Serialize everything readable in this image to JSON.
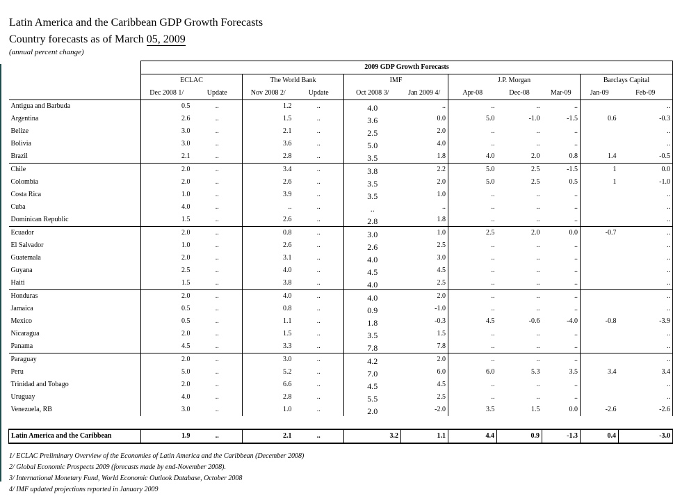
{
  "title": "Latin America and the Caribbean GDP Growth Forecasts",
  "subtitle_prefix": "Country forecasts as of March ",
  "subtitle_date": "05, 2009",
  "units": "(annual percent change)",
  "table": {
    "main_header": "2009 GDP Growth Forecasts",
    "groups": [
      "ECLAC",
      "The World Bank",
      "IMF",
      "J.P. Morgan",
      "Barclays Capital"
    ],
    "columns": [
      "Dec 2008 1/",
      "Update",
      "Nov 2008 2/",
      "Update",
      "Oct 2008 3/",
      "Jan 2009 4/",
      "Apr-08",
      "Dec-08",
      "Mar-09",
      "Jan-09",
      "Feb-09"
    ],
    "rows": [
      [
        "Antigua and Barbuda",
        "0.5",
        "..",
        "1.2",
        "..",
        "4.0",
        "..",
        "..",
        "..",
        "..",
        "",
        ".."
      ],
      [
        "Argentina",
        "2.6",
        "..",
        "1.5",
        "..",
        "3.6",
        "0.0",
        "5.0",
        "-1.0",
        "-1.5",
        "0.6",
        "-0.3"
      ],
      [
        "Belize",
        "3.0",
        "..",
        "2.1",
        "..",
        "2.5",
        "2.0",
        "..",
        "..",
        "..",
        "",
        ".."
      ],
      [
        "Bolivia",
        "3.0",
        "..",
        "3.6",
        "..",
        "5.0",
        "4.0",
        "..",
        "..",
        "..",
        "",
        ".."
      ],
      [
        "Brazil",
        "2.1",
        "..",
        "2.8",
        "..",
        "3.5",
        "1.8",
        "4.0",
        "2.0",
        "0.8",
        "1.4",
        "-0.5"
      ],
      [
        "Chile",
        "2.0",
        "..",
        "3.4",
        "..",
        "3.8",
        "2.2",
        "5.0",
        "2.5",
        "-1.5",
        "1",
        "0.0"
      ],
      [
        "Colombia",
        "2.0",
        "..",
        "2.6",
        "..",
        "3.5",
        "2.0",
        "5.0",
        "2.5",
        "0.5",
        "1",
        "-1.0"
      ],
      [
        "Costa Rica",
        "1.0",
        "..",
        "3.9",
        "..",
        "3.5",
        "1.0",
        "..",
        "..",
        "..",
        "",
        ".."
      ],
      [
        "Cuba",
        "4.0",
        "..",
        "..",
        "..",
        "..",
        "..",
        "..",
        "..",
        "..",
        "",
        ".."
      ],
      [
        "Dominican Republic",
        "1.5",
        "..",
        "2.6",
        "..",
        "2.8",
        "1.8",
        "..",
        "..",
        "..",
        "",
        ".."
      ],
      [
        "Ecuador",
        "2.0",
        "..",
        "0.8",
        "..",
        "3.0",
        "1.0",
        "2.5",
        "2.0",
        "0.0",
        "-0.7",
        ".."
      ],
      [
        "El Salvador",
        "1.0",
        "..",
        "2.6",
        "..",
        "2.6",
        "2.5",
        "..",
        "..",
        "..",
        "",
        ".."
      ],
      [
        "Guatemala",
        "2.0",
        "..",
        "3.1",
        "..",
        "4.0",
        "3.0",
        "..",
        "..",
        "..",
        "",
        ".."
      ],
      [
        "Guyana",
        "2.5",
        "..",
        "4.0",
        "..",
        "4.5",
        "4.5",
        "..",
        "..",
        "..",
        "",
        ".."
      ],
      [
        "Haiti",
        "1.5",
        "..",
        "3.8",
        "..",
        "4.0",
        "2.5",
        "..",
        "..",
        "..",
        "",
        ".."
      ],
      [
        "Honduras",
        "2.0",
        "..",
        "4.0",
        "..",
        "4.0",
        "2.0",
        "..",
        "..",
        "..",
        "",
        ".."
      ],
      [
        "Jamaica",
        "0.5",
        "..",
        "0.8",
        "..",
        "0.9",
        "-1.0",
        "..",
        "..",
        "..",
        "",
        ".."
      ],
      [
        "Mexico",
        "0.5",
        "..",
        "1.1",
        "..",
        "1.8",
        "-0.3",
        "4.5",
        "-0.6",
        "-4.0",
        "-0.8",
        "-3.9"
      ],
      [
        "Nicaragua",
        "2.0",
        "..",
        "1.5",
        "..",
        "3.5",
        "1.5",
        "..",
        "..",
        "..",
        "",
        ".."
      ],
      [
        "Panama",
        "4.5",
        "..",
        "3.3",
        "..",
        "7.8",
        "7.8",
        "..",
        "..",
        "..",
        "",
        ".."
      ],
      [
        "Paraguay",
        "2.0",
        "..",
        "3.0",
        "..",
        "4.2",
        "2.0",
        "..",
        "..",
        "..",
        "",
        ".."
      ],
      [
        "Peru",
        "5.0",
        "..",
        "5.2",
        "..",
        "7.0",
        "6.0",
        "6.0",
        "5.3",
        "3.5",
        "3.4",
        "3.4"
      ],
      [
        "Trinidad and Tobago",
        "2.0",
        "..",
        "6.6",
        "..",
        "4.5",
        "4.5",
        "..",
        "..",
        "..",
        "",
        ".."
      ],
      [
        "Uruguay",
        "4.0",
        "..",
        "2.8",
        "..",
        "5.5",
        "2.5",
        "..",
        "..",
        "..",
        "",
        ".."
      ],
      [
        "Venezuela, RB",
        "3.0",
        "..",
        "1.0",
        "..",
        "2.0",
        "-2.0",
        "3.5",
        "1.5",
        "0.0",
        "-2.6",
        "-2.6"
      ]
    ],
    "total": [
      "Latin America and the Caribbean",
      "1.9",
      "..",
      "2.1",
      "..",
      "3.2",
      "1.1",
      "4.4",
      "0.9",
      "-1.3",
      "0.4",
      "-3.0"
    ]
  },
  "notes": [
    "1/ ECLAC Preliminary Overview of the Economies of Latin America and the Caribbean (December 2008)",
    "2/ Global Economic Prospects 2009 (forecasts made by end-November 2008).",
    "3/ International Monetary Fund, World Economic Outlook Database, October 2008",
    "4/ IMF updated projections reported in January 2009"
  ]
}
